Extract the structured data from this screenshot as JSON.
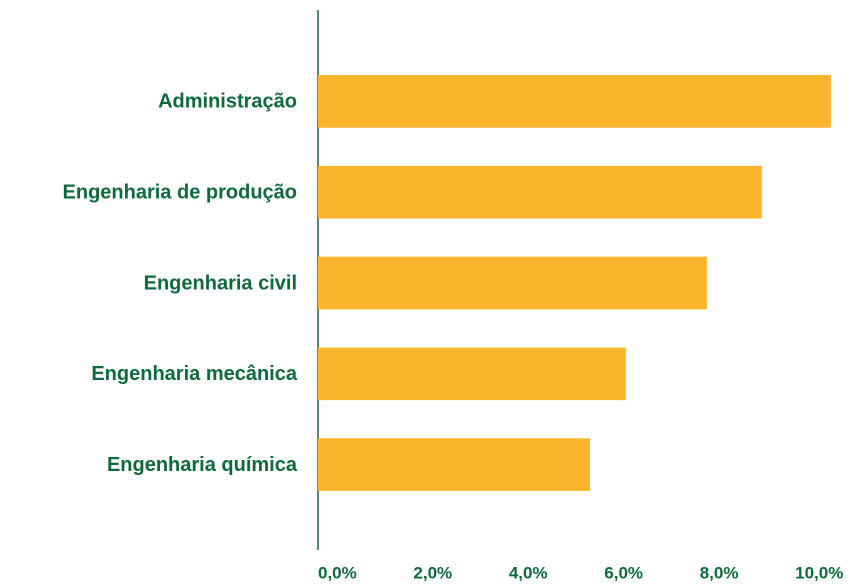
{
  "chart_data": {
    "type": "bar",
    "orientation": "horizontal",
    "categories": [
      "Administração",
      "Engenharia de produção",
      "Engenharia civil",
      "Engenharia mecânica",
      "Engenharia química"
    ],
    "values": [
      10.75,
      9.3,
      8.15,
      6.45,
      5.7
    ],
    "color": "#fbb52b",
    "xlim": [
      0,
      11.15
    ],
    "xticks": [
      {
        "value": 0,
        "label": "0,0%"
      },
      {
        "value": 2,
        "label": "2,0%"
      },
      {
        "value": 4,
        "label": "4,0%"
      },
      {
        "value": 6,
        "label": "6,0%"
      },
      {
        "value": 8,
        "label": "8,0%"
      },
      {
        "value": 10,
        "label": "10,0%"
      }
    ],
    "grid": false
  }
}
